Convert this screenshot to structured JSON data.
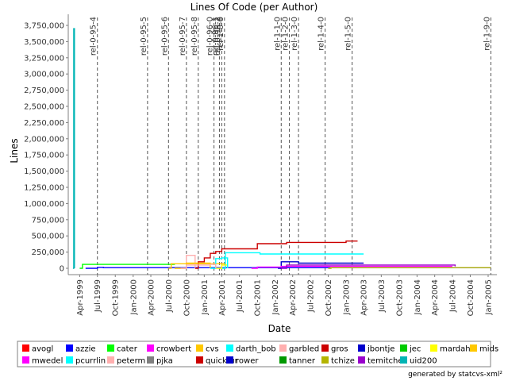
{
  "chart_data": {
    "type": "line",
    "title": "Lines Of Code (per Author)",
    "xlabel": "Date",
    "ylabel": "Lines",
    "ylim": [
      0,
      3750000
    ],
    "xlim": [
      "1999-02-01",
      "2005-02-15"
    ],
    "yticks": [
      0,
      250000,
      500000,
      750000,
      1000000,
      1250000,
      1500000,
      1750000,
      2000000,
      2250000,
      2500000,
      2750000,
      3000000,
      3250000,
      3500000,
      3750000
    ],
    "ytick_labels": [
      "0",
      "250,000",
      "500,000",
      "750,000",
      "1,000,000",
      "1,250,000",
      "1,500,000",
      "1,750,000",
      "2,000,000",
      "2,250,000",
      "2,500,000",
      "2,750,000",
      "3,000,000",
      "3,250,000",
      "3,500,000",
      "3,750,000"
    ],
    "xticks": [
      "1999-04-01",
      "1999-07-01",
      "1999-10-01",
      "2000-01-01",
      "2000-04-01",
      "2000-07-01",
      "2000-10-01",
      "2001-01-01",
      "2001-04-01",
      "2001-07-01",
      "2001-10-01",
      "2002-01-01",
      "2002-04-01",
      "2002-07-01",
      "2002-10-01",
      "2003-01-01",
      "2003-04-01",
      "2003-07-01",
      "2003-10-01",
      "2004-01-01",
      "2004-04-01",
      "2004-07-01",
      "2004-10-01",
      "2005-01-01"
    ],
    "xtick_labels": [
      "Apr-1999",
      "Jul-1999",
      "Oct-1999",
      "Jan-2000",
      "Apr-2000",
      "Jul-2000",
      "Oct-2000",
      "Jan-2001",
      "Apr-2001",
      "Jul-2001",
      "Oct-2001",
      "Jan-2002",
      "Apr-2002",
      "Jul-2002",
      "Oct-2002",
      "Jan-2003",
      "Apr-2003",
      "Jul-2003",
      "Oct-2003",
      "Jan-2004",
      "Apr-2004",
      "Jul-2004",
      "Oct-2004",
      "Jan-2005"
    ],
    "markers": [
      {
        "label": "rel-0-95-4",
        "date": "1999-07-01"
      },
      {
        "label": "rel-0-95-5",
        "date": "2000-03-15"
      },
      {
        "label": "rel-0-95-6",
        "date": "2000-07-01"
      },
      {
        "label": "rel-0-95-7",
        "date": "2000-10-01"
      },
      {
        "label": "rel-0-95-8",
        "date": "2000-12-01"
      },
      {
        "label": "rel-0-96-0",
        "date": "2001-02-20"
      },
      {
        "label": "rel-0-96-1",
        "date": "2001-03-20"
      },
      {
        "label": "rel-0-96-2",
        "date": "2001-04-01"
      },
      {
        "label": "rel-1-0-0",
        "date": "2001-04-15"
      },
      {
        "label": "rel-1-1-0",
        "date": "2002-02-01"
      },
      {
        "label": "rel-1-2-0",
        "date": "2002-03-15"
      },
      {
        "label": "rel-1-3-0",
        "date": "2002-05-01"
      },
      {
        "label": "rel-1-4-0",
        "date": "2002-09-15"
      },
      {
        "label": "rel-1-5-0",
        "date": "2003-02-01"
      },
      {
        "label": "rel-1-9-0",
        "date": "2005-01-15"
      }
    ],
    "series": [
      {
        "name": "avogl",
        "color": "#ff0000",
        "points": [
          [
            "1999-02-01",
            0
          ]
        ]
      },
      {
        "name": "azzie",
        "color": "#0000ff",
        "points": [
          [
            "1999-05-01",
            0
          ],
          [
            "1999-07-01",
            15000
          ],
          [
            "1999-08-01",
            10000
          ],
          [
            "2005-01-15",
            10000
          ]
        ]
      },
      {
        "name": "cater",
        "color": "#00ff00",
        "points": [
          [
            "1999-04-01",
            0
          ],
          [
            "1999-04-15",
            60000
          ],
          [
            "2000-07-01",
            60000
          ],
          [
            "2000-08-01",
            55000
          ]
        ]
      },
      {
        "name": "crowbert",
        "color": "#ff00ff",
        "points": [
          [
            "1999-02-01",
            0
          ]
        ]
      },
      {
        "name": "cvs",
        "color": "#ffc800",
        "points": [
          [
            "2000-07-01",
            0
          ],
          [
            "2000-07-15",
            70000
          ],
          [
            "2001-04-10",
            70000
          ],
          [
            "2001-04-20",
            0
          ]
        ]
      },
      {
        "name": "darth_bob",
        "color": "#00ffff",
        "points": [
          [
            "2001-04-01",
            0
          ],
          [
            "2001-04-20",
            240000
          ],
          [
            "2001-09-01",
            240000
          ],
          [
            "2001-10-15",
            220000
          ],
          [
            "2003-04-01",
            220000
          ]
        ]
      },
      {
        "name": "garbled",
        "color": "#ffafaf",
        "points": [
          [
            "2000-09-15",
            0
          ],
          [
            "2000-10-01",
            200000
          ],
          [
            "2000-11-01",
            200000
          ],
          [
            "2000-11-15",
            0
          ]
        ]
      },
      {
        "name": "gros",
        "color": "#cc0000",
        "points": [
          [
            "2000-11-15",
            0
          ],
          [
            "2000-12-01",
            100000
          ],
          [
            "2001-01-01",
            160000
          ],
          [
            "2001-02-01",
            230000
          ],
          [
            "2001-03-01",
            260000
          ],
          [
            "2001-04-01",
            300000
          ],
          [
            "2001-09-01",
            300000
          ],
          [
            "2001-10-01",
            380000
          ],
          [
            "2002-02-01",
            380000
          ],
          [
            "2002-03-01",
            400000
          ],
          [
            "2002-10-01",
            400000
          ],
          [
            "2003-01-01",
            420000
          ],
          [
            "2003-03-01",
            420000
          ]
        ]
      },
      {
        "name": "jbontje",
        "color": "#0000cc",
        "points": [
          [
            "2002-01-15",
            0
          ],
          [
            "2002-02-01",
            100000
          ],
          [
            "2002-04-01",
            100000
          ],
          [
            "2002-05-01",
            80000
          ],
          [
            "2003-04-01",
            80000
          ]
        ]
      },
      {
        "name": "jec",
        "color": "#00cc00",
        "points": [
          [
            "1999-02-01",
            0
          ]
        ]
      },
      {
        "name": "mardahl",
        "color": "#ffff00",
        "points": [
          [
            "2001-03-01",
            0
          ],
          [
            "2001-04-01",
            50000
          ],
          [
            "2001-05-01",
            0
          ]
        ]
      },
      {
        "name": "mids",
        "color": "#ffc800",
        "points": [
          [
            "2000-08-01",
            0
          ],
          [
            "2000-10-01",
            80000
          ],
          [
            "2001-01-01",
            80000
          ],
          [
            "2001-02-01",
            0
          ]
        ]
      },
      {
        "name": "mwedel",
        "color": "#ff00ff",
        "points": [
          [
            "2001-09-01",
            0
          ],
          [
            "2001-10-01",
            20000
          ],
          [
            "2002-02-01",
            30000
          ],
          [
            "2004-07-01",
            30000
          ]
        ]
      },
      {
        "name": "pcurrlin",
        "color": "#00ffff",
        "points": [
          [
            "2001-02-01",
            0
          ],
          [
            "2001-03-01",
            150000
          ],
          [
            "2001-04-01",
            160000
          ],
          [
            "2001-05-01",
            0
          ]
        ]
      },
      {
        "name": "peterm",
        "color": "#ffafaf",
        "points": [
          [
            "2000-09-01",
            0
          ],
          [
            "2000-10-01",
            50000
          ],
          [
            "2001-02-01",
            60000
          ],
          [
            "2001-03-01",
            0
          ]
        ]
      },
      {
        "name": "pjka",
        "color": "#808080",
        "points": [
          [
            "1999-02-01",
            0
          ]
        ]
      },
      {
        "name": "quickfur",
        "color": "#cc0000",
        "points": [
          [
            "1999-02-01",
            0
          ]
        ]
      },
      {
        "name": "rower",
        "color": "#0000cc",
        "points": [
          [
            "1999-02-01",
            0
          ]
        ]
      },
      {
        "name": "tanner",
        "color": "#009900",
        "points": [
          [
            "1999-02-01",
            0
          ]
        ]
      },
      {
        "name": "tchize",
        "color": "#b4b400",
        "points": [
          [
            "2002-10-01",
            0
          ],
          [
            "2002-10-15",
            10000
          ],
          [
            "2005-01-15",
            10000
          ]
        ]
      },
      {
        "name": "temitchell",
        "color": "#9900cc",
        "points": [
          [
            "2002-02-01",
            0
          ],
          [
            "2002-03-01",
            50000
          ],
          [
            "2003-06-01",
            50000
          ],
          [
            "2004-07-15",
            30000
          ]
        ]
      },
      {
        "name": "uid200",
        "color": "#00b4b4",
        "points": [
          [
            "1999-02-25",
            0
          ],
          [
            "1999-03-01",
            3700000
          ],
          [
            "1999-03-05",
            0
          ]
        ]
      }
    ],
    "footer": "generated by statcvs-xml²"
  }
}
